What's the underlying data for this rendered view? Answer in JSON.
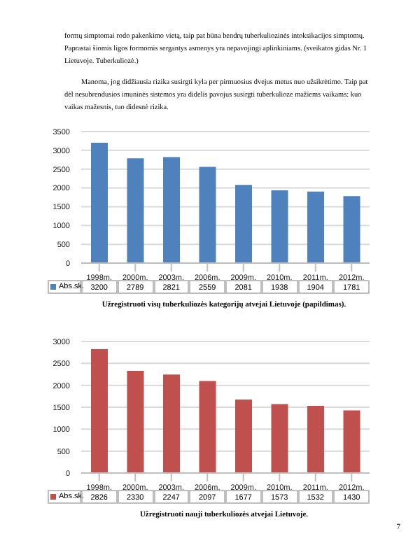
{
  "chart_data": [
    {
      "type": "bar",
      "title": "Užregistruoti visų tuberkuliozės kategorijų atvejai Lietuvoje (papildimas).",
      "annotations": [
        "formų simptomai rodo pakenkimo vietą, taip pat būna bendrų tuberkuliozinės intoksikacijos simptomų. Paprastai šiomis ligos formomis sergantys asmenys yra nepavojingi aplinkiniams. (sveikatos gidas Nr. 1 Lietuvoje. Tuberkuliozė.)",
        "Manoma, jog didžiausia rizika susirgti kyla per pirmuosius dvejus metus nuo užsikrėtimo. Taip pat dėl nesubrendusios imuninės sistemos yra didelis pavojus susirgti tuberkulioze mažiems vaikams: kuo vaikas mažesnis, tuo didesnė rizika."
      ],
      "categories": [
        "1998m.",
        "2000m.",
        "2003m.",
        "2006m.",
        "2009m.",
        "2010m.",
        "2011m.",
        "2012m."
      ],
      "series": [
        {
          "name": "Abs.sk.",
          "color": "#4f81bd",
          "values": [
            3200,
            2789,
            2821,
            2559,
            2081,
            1938,
            1904,
            1781
          ]
        }
      ],
      "ylim": [
        0,
        3500
      ],
      "yticks": [
        0,
        500,
        1000,
        1500,
        2000,
        2500,
        3000,
        3500
      ],
      "grid": "y",
      "legend": "bottom",
      "data_labels": true
    },
    {
      "type": "bar",
      "title": "Užregistruoti nauji tuberkuliozės atvejai Lietuvoje.",
      "annotations": [
        "7"
      ],
      "categories": [
        "1998m.",
        "2000m.",
        "2003m.",
        "2006m.",
        "2009m.",
        "2010m.",
        "2011m.",
        "2012m."
      ],
      "series": [
        {
          "name": "Abs.sk.",
          "color": "#c0504d",
          "values": [
            2826,
            2330,
            2247,
            2097,
            1677,
            1573,
            1532,
            1430
          ]
        }
      ],
      "ylim": [
        0,
        3000
      ],
      "yticks": [
        0,
        500,
        1000,
        1500,
        2000,
        2500,
        3000
      ],
      "grid": "y",
      "legend": "bottom",
      "data_labels": true
    }
  ]
}
